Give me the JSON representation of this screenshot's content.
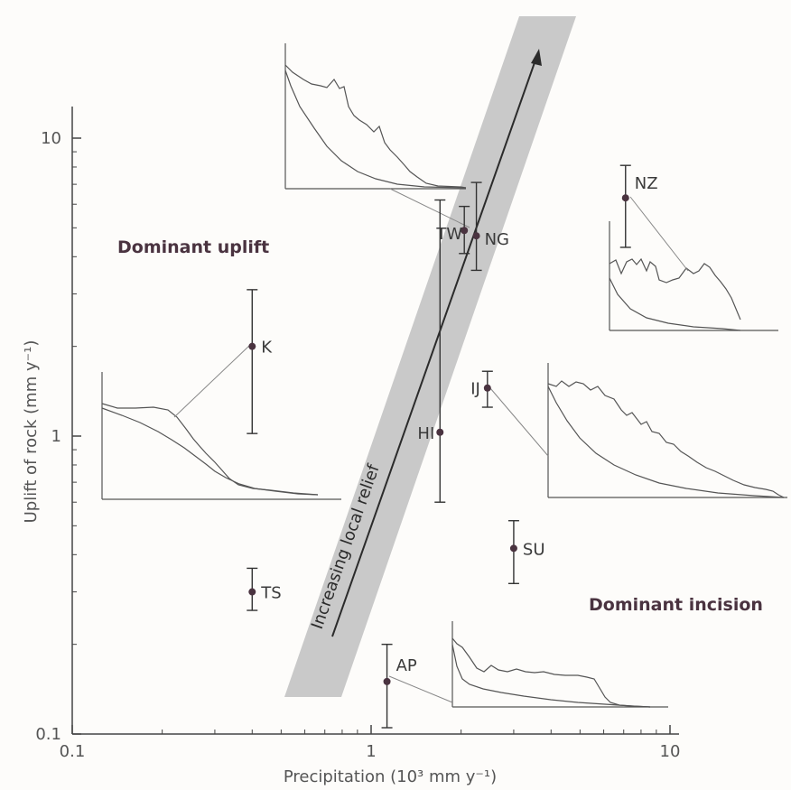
{
  "chart_data": {
    "type": "scatter",
    "x_scale": "log",
    "y_scale": "log",
    "xlabel": "Precipitation (10³ mm y⁻¹)",
    "ylabel": "Uplift of rock (mm y⁻¹)",
    "xlim": [
      0.1,
      10
    ],
    "ylim": [
      0.1,
      10
    ],
    "x_ticks": [
      {
        "value": 0.1,
        "label": "0.1"
      },
      {
        "value": 1,
        "label": "1"
      },
      {
        "value": 10,
        "label": "10"
      }
    ],
    "y_ticks": [
      {
        "value": 0.1,
        "label": "0.1"
      },
      {
        "value": 1,
        "label": "1"
      },
      {
        "value": 10,
        "label": "10"
      }
    ],
    "points": [
      {
        "label": "NZ",
        "x": 7.1,
        "y": 6.3,
        "y_low": 4.3,
        "y_high": 8.1
      },
      {
        "label": "TW",
        "x": 2.05,
        "y": 4.9,
        "y_low": 4.1,
        "y_high": 5.9
      },
      {
        "label": "NG",
        "x": 2.25,
        "y": 4.7,
        "y_low": 3.6,
        "y_high": 7.1
      },
      {
        "label": "K",
        "x": 0.4,
        "y": 2.0,
        "y_low": 1.02,
        "y_high": 3.1
      },
      {
        "label": "IJ",
        "x": 2.45,
        "y": 1.45,
        "y_low": 1.25,
        "y_high": 1.65
      },
      {
        "label": "HI",
        "x": 1.7,
        "y": 1.03,
        "y_low": 0.6,
        "y_high": 6.2
      },
      {
        "label": "SU",
        "x": 3.0,
        "y": 0.42,
        "y_low": 0.32,
        "y_high": 0.52
      },
      {
        "label": "TS",
        "x": 0.4,
        "y": 0.3,
        "y_low": 0.26,
        "y_high": 0.36
      },
      {
        "label": "AP",
        "x": 1.13,
        "y": 0.15,
        "y_low": 0.105,
        "y_high": 0.2
      }
    ],
    "annotations": {
      "uplift_region": "Dominant uplift",
      "incision_region": "Dominant incision",
      "band": "Increasing local relief"
    }
  }
}
